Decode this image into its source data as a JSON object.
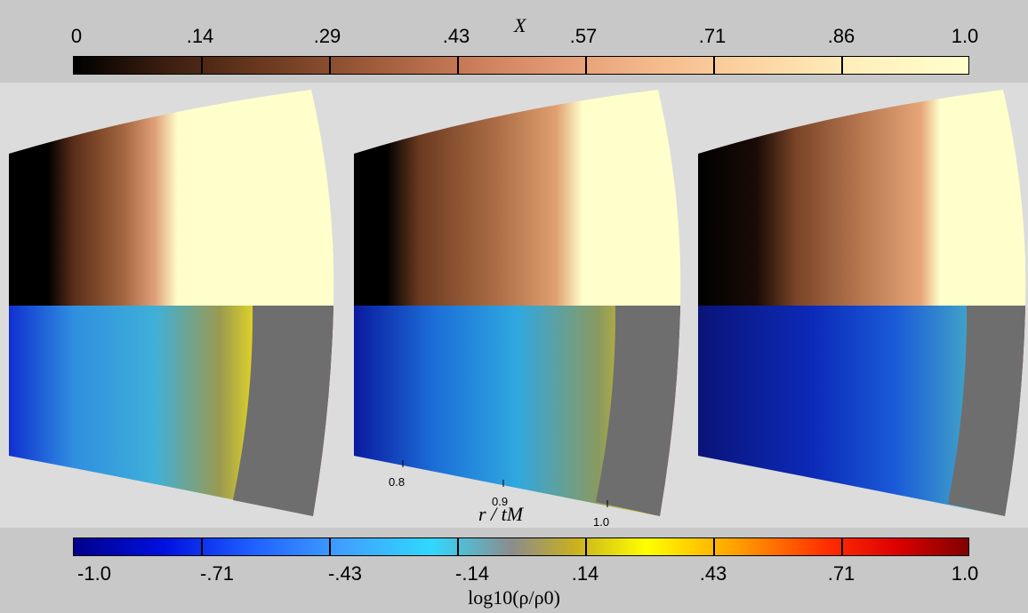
{
  "top_colorbar": {
    "variable_label": "X",
    "tick_labels": [
      "0",
      ".14",
      ".29",
      ".43",
      ".57",
      ".71",
      ".86",
      "1.0"
    ]
  },
  "bottom_colorbar": {
    "tick_labels": [
      "-1.0",
      "-.71",
      "-.43",
      "-.14",
      ".14",
      ".43",
      ".71",
      "1.0"
    ],
    "variable_label": "log10(ρ/ρ0)"
  },
  "radial_axis": {
    "label": "r / tM",
    "ticks": [
      "0.8",
      "0.9",
      "1.0"
    ]
  },
  "colors": {
    "band_gray": "#c8c8c8",
    "panel_bg": "#dcdcdc",
    "unmixed_cream": "#ffffcc",
    "ambient_gray": "#6e6e6e"
  }
}
